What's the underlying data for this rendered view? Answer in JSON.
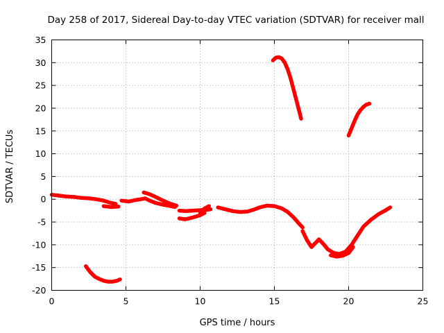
{
  "chart_data": {
    "type": "line",
    "title": "Day 258 of 2017, Sidereal Day-to-day VTEC variation (SDTVAR) for receiver mall",
    "xlabel": "GPS time / hours",
    "ylabel": "SDTVAR / TECUs",
    "xlim": [
      0,
      25
    ],
    "ylim": [
      -20,
      35
    ],
    "xticks": [
      0,
      5,
      10,
      15,
      20,
      25
    ],
    "yticks": [
      -20,
      -15,
      -10,
      -5,
      0,
      5,
      10,
      15,
      20,
      25,
      30,
      35
    ],
    "grid": true,
    "series_color": "#ff0000",
    "series": [
      {
        "name": "trace-main",
        "x": [
          0.0,
          0.5,
          1.0,
          1.5,
          2.0,
          2.5,
          3.0,
          3.5,
          4.0,
          4.3
        ],
        "y": [
          1.0,
          0.8,
          0.6,
          0.5,
          0.3,
          0.2,
          0.0,
          -0.3,
          -0.8,
          -1.0
        ]
      },
      {
        "name": "trace-main-b",
        "x": [
          3.5,
          4.0,
          4.5
        ],
        "y": [
          -1.5,
          -1.7,
          -1.6
        ]
      },
      {
        "name": "trace-main-c",
        "x": [
          4.7,
          5.2,
          5.6,
          6.0,
          6.3,
          6.6,
          7.0,
          7.5,
          8.0,
          8.3
        ],
        "y": [
          -0.3,
          -0.5,
          -0.2,
          0.0,
          0.2,
          -0.3,
          -0.8,
          -1.2,
          -1.5,
          -1.7
        ]
      },
      {
        "name": "trace-main-d",
        "x": [
          6.2,
          6.6,
          7.0,
          7.5,
          8.0,
          8.4
        ],
        "y": [
          1.5,
          1.1,
          0.5,
          -0.3,
          -1.0,
          -1.4
        ]
      },
      {
        "name": "trace-main-e",
        "x": [
          8.6,
          9.0,
          9.5,
          10.0,
          10.5,
          10.7
        ],
        "y": [
          -2.5,
          -2.6,
          -2.5,
          -2.4,
          -2.3,
          -2.2
        ]
      },
      {
        "name": "trace-main-f",
        "x": [
          8.6,
          9.0,
          9.5,
          10.0,
          10.3
        ],
        "y": [
          -4.2,
          -4.4,
          -4.0,
          -3.5,
          -3.0
        ]
      },
      {
        "name": "trace-main-g",
        "x": [
          10.0,
          10.3,
          10.6
        ],
        "y": [
          -3.0,
          -2.0,
          -1.5
        ]
      },
      {
        "name": "trace-main-h",
        "x": [
          11.2,
          11.7,
          12.2,
          12.7,
          13.2,
          13.6,
          14.0,
          14.5,
          15.0,
          15.5,
          15.9,
          16.3,
          16.7,
          16.9
        ],
        "y": [
          -1.8,
          -2.2,
          -2.6,
          -2.8,
          -2.7,
          -2.3,
          -1.8,
          -1.4,
          -1.5,
          -2.0,
          -2.8,
          -4.0,
          -5.5,
          -6.2
        ]
      },
      {
        "name": "trace-main-i",
        "x": [
          16.9,
          17.2,
          17.5,
          17.8,
          18.0,
          18.3,
          18.6,
          19.0,
          19.4,
          19.8,
          20.2,
          20.6,
          21.0,
          21.5,
          22.0,
          22.5,
          22.8
        ],
        "y": [
          -7.0,
          -9.0,
          -10.5,
          -9.5,
          -8.8,
          -9.8,
          -11.0,
          -11.8,
          -12.0,
          -11.5,
          -10.0,
          -8.0,
          -6.0,
          -4.5,
          -3.3,
          -2.4,
          -1.8
        ]
      },
      {
        "name": "trace-main-j",
        "x": [
          18.8,
          19.2,
          19.6,
          20.0,
          20.3
        ],
        "y": [
          -12.3,
          -12.6,
          -12.4,
          -11.8,
          -10.5
        ]
      },
      {
        "name": "trace-low",
        "x": [
          2.3,
          2.6,
          2.9,
          3.2,
          3.5,
          3.8,
          4.1,
          4.4,
          4.6
        ],
        "y": [
          -14.7,
          -16.0,
          -17.0,
          -17.5,
          -17.9,
          -18.1,
          -18.1,
          -17.9,
          -17.6
        ]
      },
      {
        "name": "trace-high-1",
        "x": [
          14.9,
          15.1,
          15.3,
          15.5,
          15.7,
          15.9,
          16.1,
          16.3,
          16.5,
          16.7,
          16.8
        ],
        "y": [
          30.5,
          31.1,
          31.2,
          30.9,
          30.0,
          28.5,
          26.5,
          24.0,
          21.5,
          19.0,
          17.7
        ]
      },
      {
        "name": "trace-high-2",
        "x": [
          20.0,
          20.2,
          20.4,
          20.6,
          20.8,
          21.0,
          21.2,
          21.4
        ],
        "y": [
          14.0,
          15.6,
          17.2,
          18.6,
          19.6,
          20.3,
          20.8,
          21.0
        ]
      }
    ]
  }
}
